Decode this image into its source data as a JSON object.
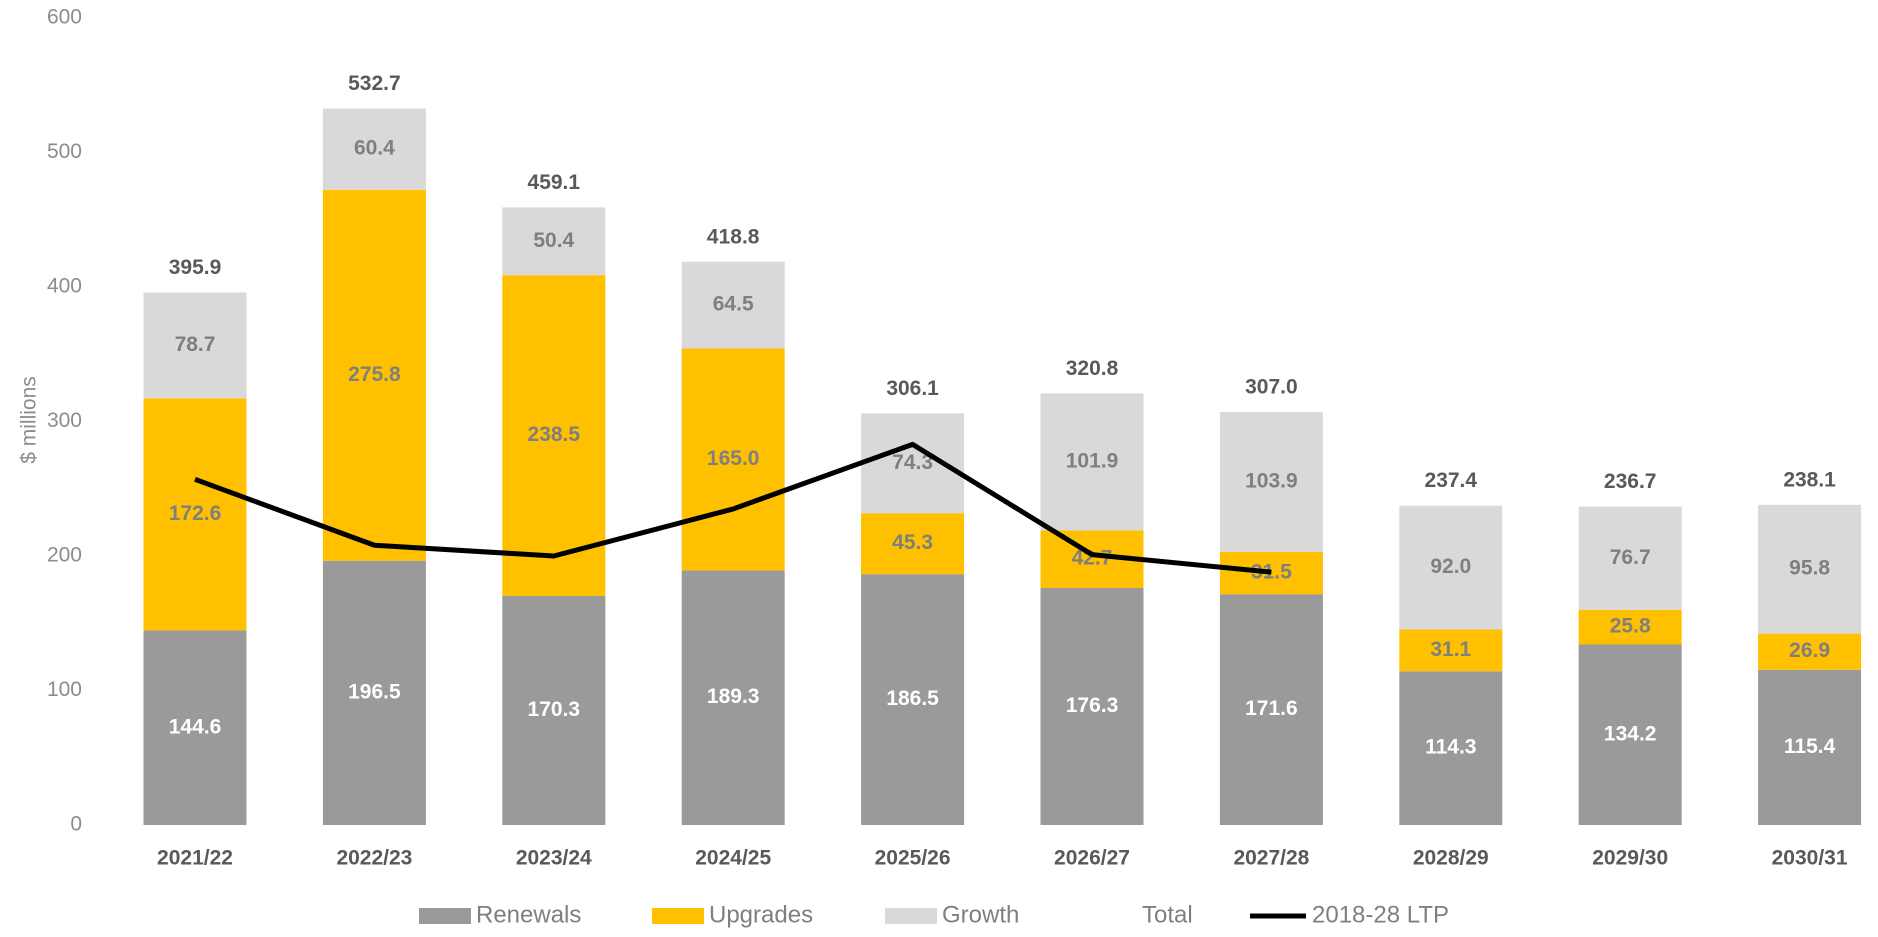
{
  "chart_data": {
    "type": "stacked-bar",
    "y_label": "$ millions",
    "categories": [
      "2021/22",
      "2022/23",
      "2023/24",
      "2024/25",
      "2025/26",
      "2026/27",
      "2027/28",
      "2028/29",
      "2029/30",
      "2030/31"
    ],
    "series": [
      {
        "name": "Renewals",
        "color": "#9a9a9a",
        "values": [
          144.6,
          196.5,
          170.3,
          189.3,
          186.5,
          176.3,
          171.6,
          114.3,
          134.2,
          115.4
        ],
        "value_labels": [
          "144.6",
          "196.5",
          "170.3",
          "189.3",
          "186.5",
          "176.3",
          "171.6",
          "114.3",
          "134.2",
          "115.4"
        ]
      },
      {
        "name": "Upgrades",
        "color": "#ffc000",
        "values": [
          172.6,
          275.8,
          238.5,
          165.0,
          45.3,
          42.7,
          31.5,
          31.1,
          25.8,
          26.9
        ],
        "value_labels": [
          "172.6",
          "275.8",
          "238.5",
          "165.0",
          "45.3",
          "42.7",
          "31.5",
          "31.1",
          "25.8",
          "26.9"
        ]
      },
      {
        "name": "Growth",
        "color": "#d9d9d9",
        "values": [
          78.7,
          60.4,
          50.4,
          64.5,
          74.3,
          101.9,
          103.9,
          92.0,
          76.7,
          95.8
        ],
        "value_labels": [
          "78.7",
          "60.4",
          "50.4",
          "64.5",
          "74.3",
          "101.9",
          "103.9",
          "92.0",
          "76.7",
          "95.8"
        ]
      }
    ],
    "totals": {
      "name": "Total",
      "values": [
        395.9,
        532.7,
        459.1,
        418.8,
        306.1,
        320.8,
        307.0,
        237.4,
        236.7,
        238.1
      ],
      "value_labels": [
        "395.9",
        "532.7",
        "459.1",
        "418.8",
        "306.1",
        "320.8",
        "307.0",
        "237.4",
        "236.7",
        "238.1"
      ]
    },
    "line": {
      "name": "2018-28 LTP",
      "color": "#000000",
      "values": [
        257,
        208,
        200,
        235,
        283,
        201,
        188,
        null,
        null,
        null
      ]
    },
    "ylim": [
      0,
      600
    ],
    "yticks": [
      0,
      100,
      200,
      300,
      400,
      500,
      600
    ],
    "grid": false,
    "legend": "bottom"
  }
}
